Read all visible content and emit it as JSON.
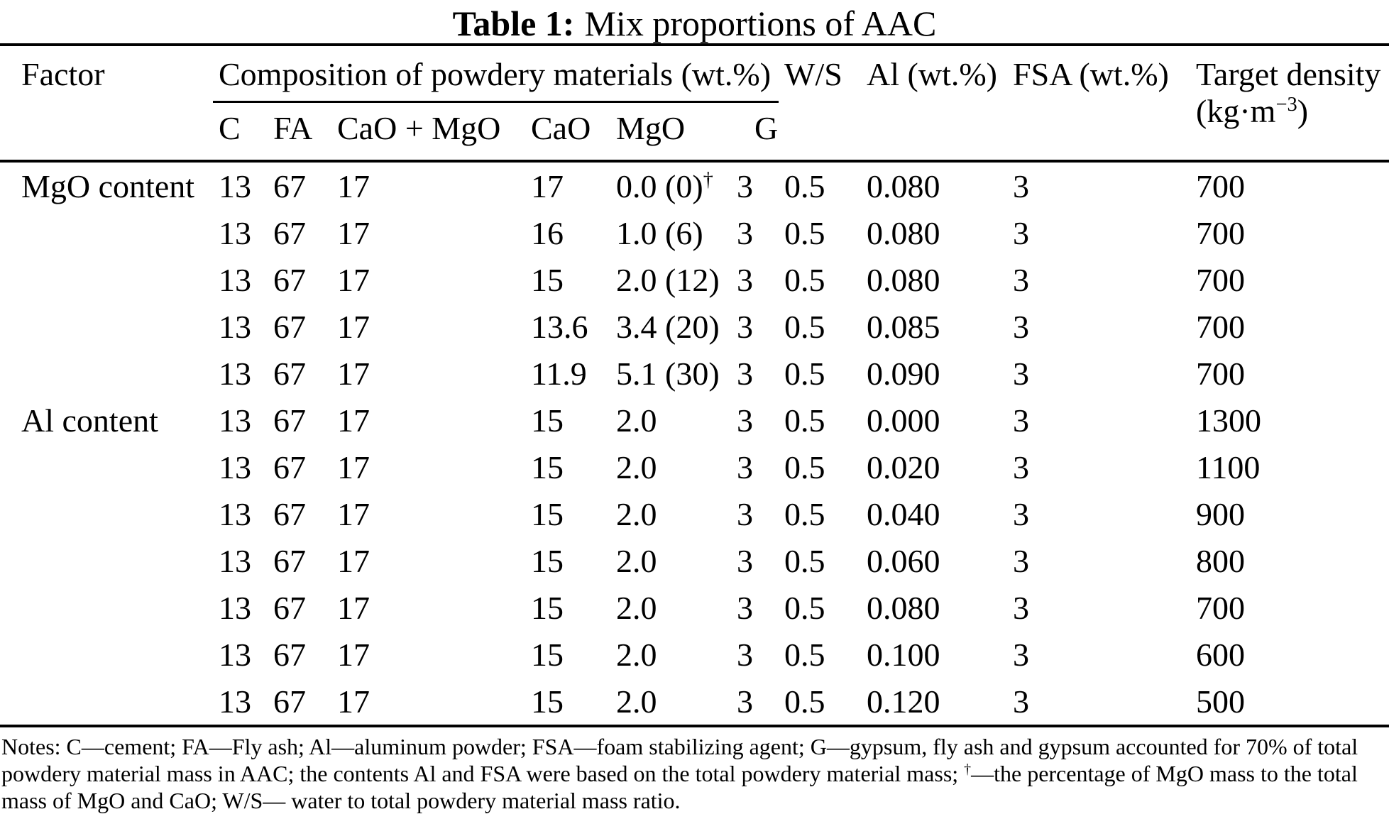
{
  "title": {
    "label": "Table 1:",
    "text": "Mix proportions of AAC"
  },
  "table": {
    "header": {
      "factor": "Factor",
      "composition_group": "Composition of powdery materials (wt.%)",
      "sub_columns": [
        "C",
        "FA",
        "CaO + MgO",
        "CaO",
        "MgO",
        "G"
      ],
      "ws": "W/S",
      "al": "Al (wt.%)",
      "fsa": "FSA (wt.%)",
      "target_density_line1": "Target density",
      "target_density_unit": {
        "pre": "(kg·m",
        "sup": "−3",
        "post": ")"
      }
    },
    "rows": [
      {
        "factor": "MgO content",
        "cells": [
          "13",
          "67",
          "17",
          "17",
          {
            "t": "0.0 (0)",
            "sup": "†"
          },
          "3",
          "0.5",
          "0.080",
          "3",
          "700"
        ]
      },
      {
        "factor": "",
        "cells": [
          "13",
          "67",
          "17",
          "16",
          "1.0 (6)",
          "3",
          "0.5",
          "0.080",
          "3",
          "700"
        ]
      },
      {
        "factor": "",
        "cells": [
          "13",
          "67",
          "17",
          "15",
          "2.0 (12)",
          "3",
          "0.5",
          "0.080",
          "3",
          "700"
        ]
      },
      {
        "factor": "",
        "cells": [
          "13",
          "67",
          "17",
          "13.6",
          "3.4 (20)",
          "3",
          "0.5",
          "0.085",
          "3",
          "700"
        ]
      },
      {
        "factor": "",
        "cells": [
          "13",
          "67",
          "17",
          "11.9",
          "5.1 (30)",
          "3",
          "0.5",
          "0.090",
          "3",
          "700"
        ]
      },
      {
        "factor": "Al content",
        "cells": [
          "13",
          "67",
          "17",
          "15",
          "2.0",
          "3",
          "0.5",
          "0.000",
          "3",
          "1300"
        ]
      },
      {
        "factor": "",
        "cells": [
          "13",
          "67",
          "17",
          "15",
          "2.0",
          "3",
          "0.5",
          "0.020",
          "3",
          "1100"
        ]
      },
      {
        "factor": "",
        "cells": [
          "13",
          "67",
          "17",
          "15",
          "2.0",
          "3",
          "0.5",
          "0.040",
          "3",
          "900"
        ]
      },
      {
        "factor": "",
        "cells": [
          "13",
          "67",
          "17",
          "15",
          "2.0",
          "3",
          "0.5",
          "0.060",
          "3",
          "800"
        ]
      },
      {
        "factor": "",
        "cells": [
          "13",
          "67",
          "17",
          "15",
          "2.0",
          "3",
          "0.5",
          "0.080",
          "3",
          "700"
        ]
      },
      {
        "factor": "",
        "cells": [
          "13",
          "67",
          "17",
          "15",
          "2.0",
          "3",
          "0.5",
          "0.100",
          "3",
          "600"
        ]
      },
      {
        "factor": "",
        "cells": [
          "13",
          "67",
          "17",
          "15",
          "2.0",
          "3",
          "0.5",
          "0.120",
          "3",
          "500"
        ]
      }
    ]
  },
  "notes": {
    "lines": [
      [
        {
          "t": "Notes: C—cement; FA—Fly ash; Al—aluminum powder; FSA—foam stabilizing agent; G—gypsum, fly ash and gypsum accounted for 70% of total"
        }
      ],
      [
        {
          "t": "powdery material mass in AAC; the contents Al and FSA were based on the total powdery material mass; "
        },
        {
          "sup": "†"
        },
        {
          "t": "—the percentage of MgO mass to the total"
        }
      ],
      [
        {
          "t": "mass of MgO and CaO; W/S— water to total powdery material mass ratio."
        }
      ]
    ]
  }
}
